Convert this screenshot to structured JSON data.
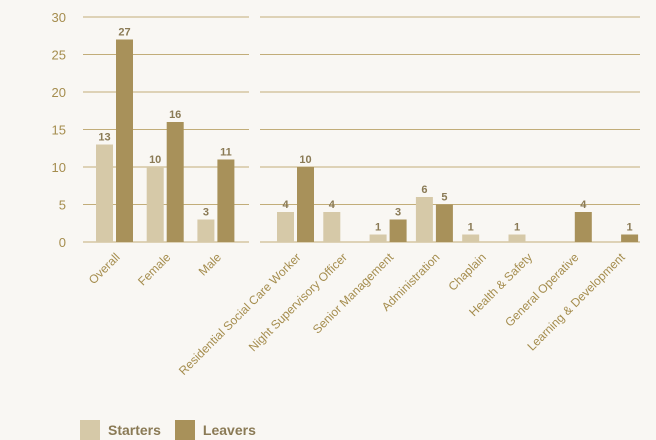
{
  "chart_data": {
    "type": "bar",
    "ylim": [
      0,
      30
    ],
    "yticks": [
      0,
      5,
      10,
      15,
      20,
      25,
      30
    ],
    "grid": true,
    "legend_position": "bottom-left",
    "colors": {
      "Starters": "#d6c9a8",
      "Leavers": "#a8915a",
      "grid": "#c2ad79",
      "text": "#a58d4e"
    },
    "panels": [
      {
        "categories": [
          "Overall",
          "Female",
          "Male"
        ]
      },
      {
        "categories": [
          "Residential Social Care Worker",
          "Night Supervisory Officer",
          "Senior Management",
          "Administration",
          "Chaplain",
          "Health & Safety",
          "General Operative",
          "Learning & Development"
        ]
      }
    ],
    "series": [
      {
        "name": "Starters",
        "panel_values": [
          [
            13,
            10,
            3
          ],
          [
            4,
            4,
            1,
            6,
            1,
            1,
            null,
            null
          ]
        ]
      },
      {
        "name": "Leavers",
        "panel_values": [
          [
            27,
            16,
            11
          ],
          [
            10,
            null,
            3,
            5,
            null,
            null,
            4,
            1
          ]
        ]
      }
    ]
  }
}
